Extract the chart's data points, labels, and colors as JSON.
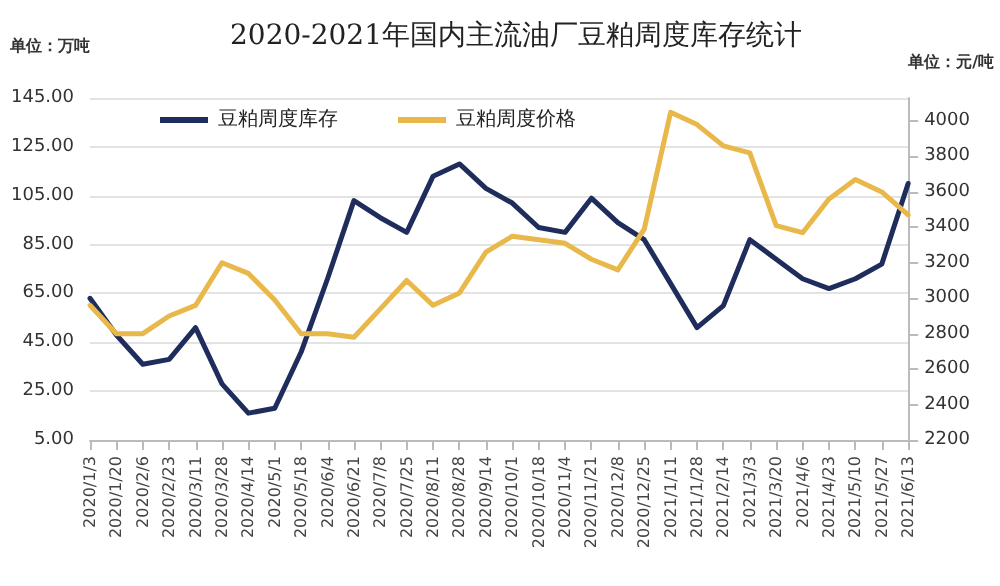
{
  "chart_data": {
    "type": "line",
    "title": "2020-2021年国内主流油厂豆粕周度库存统计",
    "ylabel": "单位：万吨",
    "y2label": "单位：元/吨",
    "categories": [
      "2020/1/3",
      "2020/1/20",
      "2020/2/6",
      "2020/2/23",
      "2020/3/11",
      "2020/3/28",
      "2020/4/14",
      "2020/5/1",
      "2020/5/18",
      "2020/6/4",
      "2020/6/21",
      "2020/7/8",
      "2020/7/25",
      "2020/8/11",
      "2020/8/28",
      "2020/9/14",
      "2020/10/1",
      "2020/10/18",
      "2020/11/4",
      "2020/11/21",
      "2020/12/8",
      "2020/12/25",
      "2021/1/11",
      "2021/1/28",
      "2021/2/14",
      "2021/3/3",
      "2021/3/20",
      "2021/4/6",
      "2021/4/23",
      "2021/5/10",
      "2021/5/27",
      "2021/6/13"
    ],
    "series": [
      {
        "name": "豆粕周度库存",
        "color": "#1f2d5c",
        "values": [
          63,
          48,
          36,
          38,
          51,
          28,
          16,
          18,
          41,
          71,
          103,
          96,
          90,
          113,
          118,
          108,
          102,
          92,
          90,
          104,
          94,
          87,
          69,
          51,
          60,
          87,
          79,
          71,
          67,
          71,
          77,
          110
        ]
      },
      {
        "name": "豆粕周度价格",
        "color": "#e8b84a",
        "axis": "y2",
        "values": [
          2960,
          2800,
          2800,
          2900,
          2960,
          3200,
          3140,
          2990,
          2800,
          2800,
          2780,
          2940,
          3100,
          2960,
          3030,
          3260,
          3350,
          3330,
          3310,
          3220,
          3160,
          3390,
          4050,
          3980,
          3860,
          3820,
          3410,
          3370,
          3560,
          3670,
          3600,
          3470
        ]
      }
    ],
    "ylim": [
      5,
      145
    ],
    "yticks": [
      {
        "value": 5,
        "label": "5.00"
      },
      {
        "value": 25,
        "label": "25.00"
      },
      {
        "value": 45,
        "label": "45.00"
      },
      {
        "value": 65,
        "label": "65.00"
      },
      {
        "value": 85,
        "label": "85.00"
      },
      {
        "value": 105,
        "label": "105.00"
      },
      {
        "value": 125,
        "label": "125.00"
      },
      {
        "value": 145,
        "label": "145.00"
      }
    ],
    "y2lim": [
      2200,
      4130
    ],
    "y2ticks": [
      2200,
      2400,
      2600,
      2800,
      3000,
      3200,
      3400,
      3600,
      3800,
      4000
    ],
    "grid": "y",
    "legend": "top left",
    "marker": "none",
    "line_style": "solid"
  }
}
